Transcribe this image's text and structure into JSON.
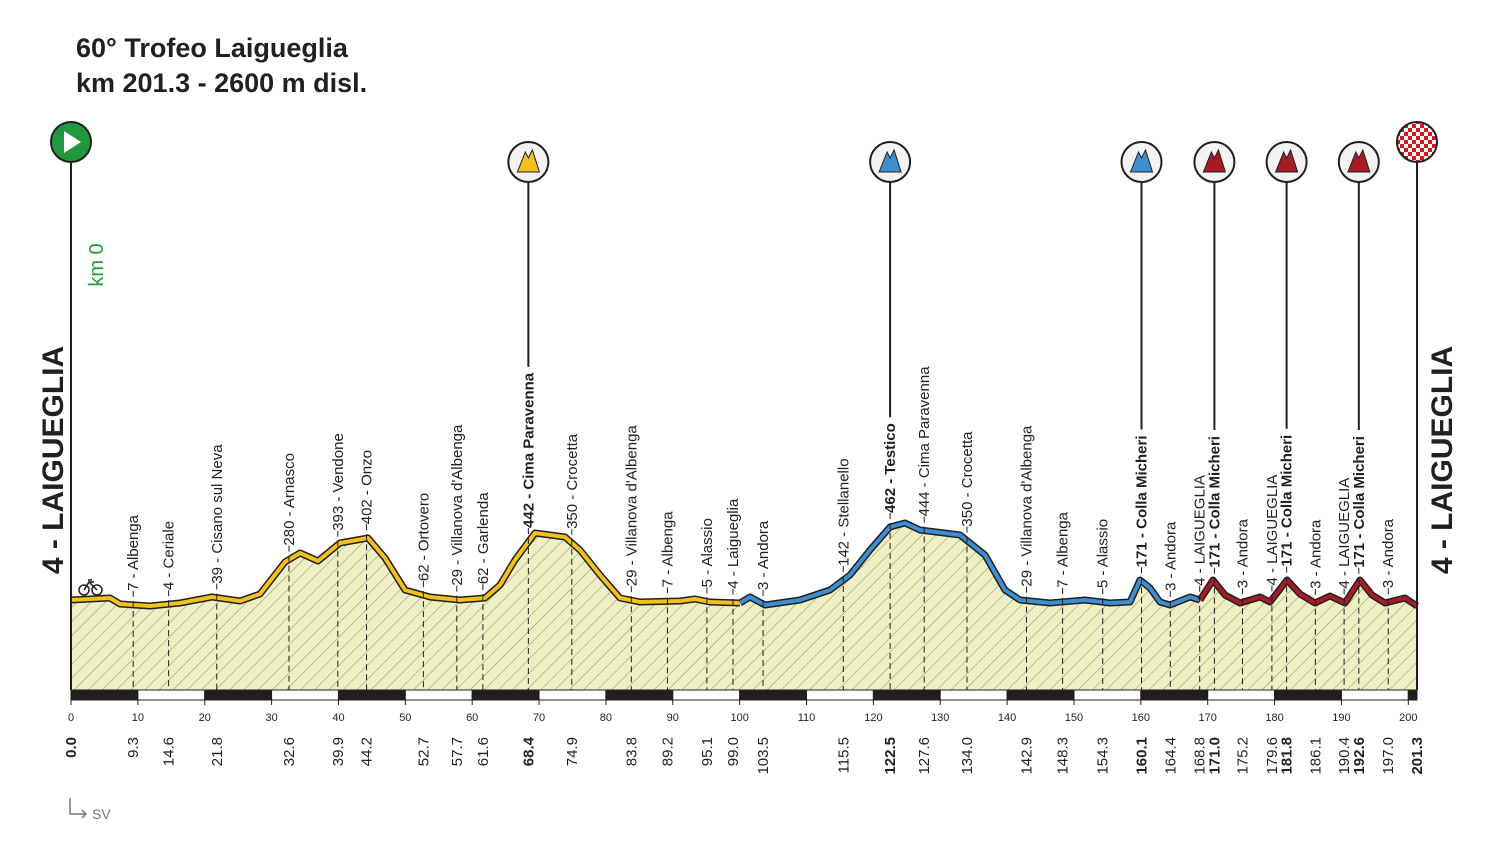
{
  "header": {
    "title": "60° Trofeo Laigueglia",
    "subtitle": "km 201.3 - 2600 m disl."
  },
  "start": {
    "km": "0.0",
    "place": "4 - LAIGUEGLIA",
    "note": "km 0"
  },
  "finish": {
    "km": "201.3",
    "place": "4 - LAIGUEGLIA"
  },
  "direction": "SV",
  "scale_ticks": [
    0,
    10,
    20,
    30,
    40,
    50,
    60,
    70,
    80,
    90,
    100,
    110,
    120,
    130,
    140,
    150,
    160,
    170,
    180,
    190,
    200
  ],
  "waypoints": [
    {
      "km": "9.3",
      "label": "7 - Albenga"
    },
    {
      "km": "14.6",
      "label": "4 - Ceriale"
    },
    {
      "km": "21.8",
      "label": "39 - Cisano sul Neva"
    },
    {
      "km": "32.6",
      "label": "280 - Arnasco"
    },
    {
      "km": "39.9",
      "label": "393 - Vendone"
    },
    {
      "km": "44.2",
      "label": "402 - Onzo"
    },
    {
      "km": "52.7",
      "label": "62 - Ortovero"
    },
    {
      "km": "57.7",
      "label": "29 - Villanova d'Albenga"
    },
    {
      "km": "61.6",
      "label": "62 - Garlenda"
    },
    {
      "km": "68.4",
      "label": "442 - Cima Paravenna",
      "bold": true,
      "climb_color": "#f2c21a"
    },
    {
      "km": "74.9",
      "label": "350 - Crocetta"
    },
    {
      "km": "83.8",
      "label": "29 - Villanova d'Albenga"
    },
    {
      "km": "89.2",
      "label": "7 - Albenga"
    },
    {
      "km": "95.1",
      "label": "5 - Alassio"
    },
    {
      "km": "99.0",
      "label": "4 - Laigueglia"
    },
    {
      "km": "103.5",
      "label": "3 - Andora"
    },
    {
      "km": "115.5",
      "label": "142 - Stellanello"
    },
    {
      "km": "122.5",
      "label": "462 - Testico",
      "bold": true,
      "climb_color": "#3c8fd0"
    },
    {
      "km": "127.6",
      "label": "444 - Cima Paravenna"
    },
    {
      "km": "134.0",
      "label": "350 - Crocetta"
    },
    {
      "km": "142.9",
      "label": "29 - Villanova d'Albenga"
    },
    {
      "km": "148.3",
      "label": "7 - Albenga"
    },
    {
      "km": "154.3",
      "label": "5 - Alassio"
    },
    {
      "km": "160.1",
      "label": "171 - Colla Micheri",
      "bold": true,
      "climb_color": "#3c8fd0"
    },
    {
      "km": "164.4",
      "label": "3 - Andora"
    },
    {
      "km": "168.8",
      "label": "4 - LAIGUEGLIA"
    },
    {
      "km": "171.0",
      "label": "171 - Colla Micheri",
      "bold": true,
      "climb_color": "#a51c24"
    },
    {
      "km": "175.2",
      "label": "3 - Andora"
    },
    {
      "km": "179.6",
      "label": "4 - LAIGUEGLIA"
    },
    {
      "km": "181.8",
      "label": "171 - Colla Micheri",
      "bold": true,
      "climb_color": "#a51c24"
    },
    {
      "km": "186.1",
      "label": "3 - Andora"
    },
    {
      "km": "190.4",
      "label": "4 - LAIGUEGLIA"
    },
    {
      "km": "192.6",
      "label": "171 - Colla Micheri",
      "bold": true,
      "climb_color": "#a51c24"
    },
    {
      "km": "197.0",
      "label": "3 - Andora"
    }
  ]
}
